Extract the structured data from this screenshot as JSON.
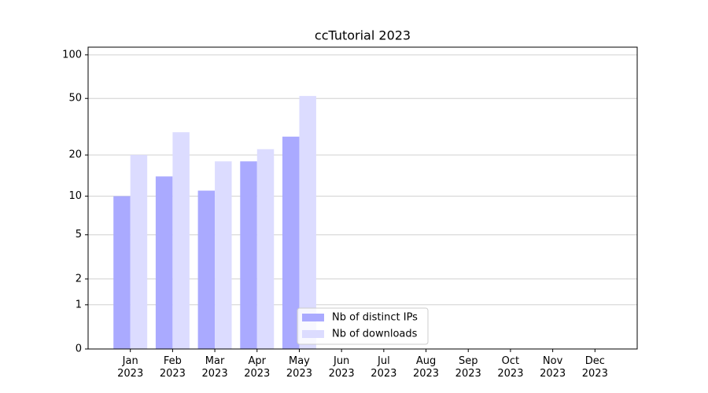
{
  "chart_data": {
    "type": "bar",
    "title": "ccTutorial 2023",
    "categories": [
      "Jan 2023",
      "Feb 2023",
      "Mar 2023",
      "Apr 2023",
      "May 2023",
      "Jun 2023",
      "Jul 2023",
      "Aug 2023",
      "Sep 2023",
      "Oct 2023",
      "Nov 2023",
      "Dec 2023"
    ],
    "series": [
      {
        "name": "Nb of distinct IPs",
        "color": "#aaaaff",
        "values": [
          10,
          14,
          11,
          18,
          27,
          null,
          null,
          null,
          null,
          null,
          null,
          null
        ]
      },
      {
        "name": "Nb of downloads",
        "color": "#dcdcff",
        "values": [
          20,
          29,
          18,
          22,
          52,
          null,
          null,
          null,
          null,
          null,
          null,
          null
        ]
      }
    ],
    "yscale": "log1p",
    "ylim": [
      0,
      113
    ],
    "yticks": [
      0,
      1,
      2,
      5,
      10,
      20,
      50,
      100
    ],
    "grid": true,
    "legend": "lower center"
  }
}
